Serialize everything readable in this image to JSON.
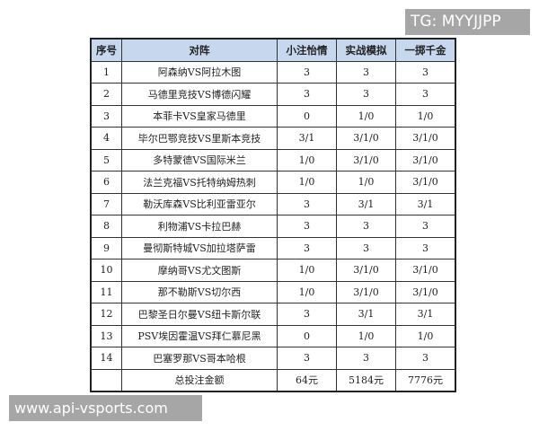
{
  "watermarks": {
    "top": "TG: MYYJJPP",
    "bottom": "www.api-vsports.com"
  },
  "header": [
    "序号",
    "对阵",
    "小注怡情",
    "实战模拟",
    "一掷千金"
  ],
  "rows": [
    [
      "1",
      "阿森纳VS阿拉木图",
      "3",
      "3",
      "3"
    ],
    [
      "2",
      "马德里竞技VS博德闪耀",
      "3",
      "3",
      "3"
    ],
    [
      "3",
      "本菲卡VS皇家马德里",
      "0",
      "1/0",
      "1/0"
    ],
    [
      "4",
      "毕尔巴鄂竞技VS里斯本竞技",
      "3/1",
      "3/1/0",
      "3/1/0"
    ],
    [
      "5",
      "多特蒙德VS国际米兰",
      "1/0",
      "3/1/0",
      "3/1/0"
    ],
    [
      "6",
      "法兰克福VS托特纳姆热刺",
      "1/0",
      "1/0",
      "3/1/0"
    ],
    [
      "7",
      "勒沃库森VS比利亚雷亚尔",
      "3",
      "3/1",
      "3/1"
    ],
    [
      "8",
      "利物浦VS卡拉巴赫",
      "3",
      "3",
      "3"
    ],
    [
      "9",
      "曼彻斯特城VS加拉塔萨雷",
      "3",
      "3",
      "3"
    ],
    [
      "10",
      "摩纳哥VS尤文图斯",
      "1/0",
      "3/1/0",
      "3/1/0"
    ],
    [
      "11",
      "那不勒斯VS切尔西",
      "1/0",
      "3/1/0",
      "3/1/0"
    ],
    [
      "12",
      "巴黎圣日尔曼VS纽卡斯尔联",
      "3",
      "3/1",
      "3/1"
    ],
    [
      "13",
      "PSV埃因霍温VS拜仁慕尼黑",
      "0",
      "1/0",
      "1/0"
    ],
    [
      "14",
      "巴塞罗那VS哥本哈根",
      "3",
      "3",
      "3"
    ]
  ],
  "total": {
    "label": "总投注金额",
    "values": [
      "64元",
      "5184元",
      "7776元"
    ]
  },
  "colors": {
    "header_bg": "#c6d7ee",
    "watermark_bg": "#a6a6a6"
  }
}
